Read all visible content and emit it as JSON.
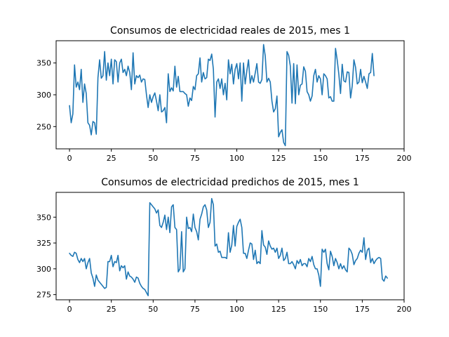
{
  "chart_data": [
    {
      "type": "line",
      "title": "Consumos de electricidad reales de 2015, mes 1",
      "xlabel": "",
      "ylabel": "",
      "xlim": [
        -8,
        200
      ],
      "ylim": [
        215,
        385
      ],
      "x_ticks": [
        0,
        25,
        50,
        75,
        100,
        125,
        150,
        175,
        200
      ],
      "y_ticks": [
        250,
        300,
        350
      ],
      "grid": false,
      "line_color": "#1f77b4",
      "series": [
        {
          "values": [
            283,
            256,
            270,
            347,
            312,
            320,
            308,
            340,
            288,
            317,
            302,
            256,
            252,
            237,
            258,
            256,
            238,
            327,
            355,
            326,
            330,
            368,
            323,
            350,
            330,
            356,
            317,
            355,
            352,
            320,
            350,
            356,
            335,
            340,
            330,
            345,
            335,
            308,
            366,
            317,
            330,
            327,
            331,
            320,
            325,
            324,
            300,
            280,
            300,
            288,
            297,
            303,
            290,
            275,
            300,
            273,
            275,
            280,
            256,
            333,
            305,
            311,
            306,
            345,
            312,
            329,
            305,
            305,
            305,
            302,
            300,
            282,
            295,
            291,
            313,
            308,
            330,
            333,
            358,
            320,
            335,
            325,
            327,
            356,
            354,
            364,
            340,
            265,
            320,
            325,
            310,
            325,
            300,
            318,
            292,
            355,
            333,
            348,
            317,
            340,
            349,
            325,
            350,
            290,
            350,
            317,
            338,
            355,
            318,
            330,
            320,
            334,
            349,
            320,
            318,
            324,
            379,
            361,
            320,
            326,
            320,
            290,
            273,
            278,
            298,
            234,
            241,
            245,
            225,
            220,
            368,
            362,
            345,
            287,
            349,
            286,
            347,
            300,
            315,
            317,
            344,
            337,
            305,
            300,
            290,
            298,
            330,
            340,
            320,
            330,
            325,
            300,
            333,
            330,
            325,
            295,
            297,
            290,
            290,
            373,
            355,
            332,
            302,
            348,
            322,
            320,
            336,
            335,
            295,
            314,
            355,
            343,
            317,
            320,
            340,
            319,
            329,
            320,
            310,
            333,
            335,
            365,
            330
          ]
        }
      ]
    },
    {
      "type": "line",
      "title": "Consumos de electricidad predichos de 2015, mes 1",
      "xlabel": "",
      "ylabel": "",
      "xlim": [
        -8,
        200
      ],
      "ylim": [
        270,
        374
      ],
      "x_ticks": [
        0,
        25,
        50,
        75,
        100,
        125,
        150,
        175,
        200
      ],
      "y_ticks": [
        275,
        300,
        325,
        350
      ],
      "grid": false,
      "line_color": "#1f77b4",
      "series": [
        {
          "values": [
            315,
            313,
            312,
            316,
            315,
            309,
            306,
            310,
            307,
            310,
            300,
            306,
            310,
            296,
            291,
            283,
            294,
            289,
            287,
            285,
            283,
            281,
            282,
            307,
            307,
            313,
            302,
            307,
            306,
            313,
            298,
            303,
            301,
            303,
            290,
            297,
            293,
            292,
            290,
            287,
            292,
            291,
            286,
            283,
            281,
            280,
            277,
            274,
            364,
            362,
            360,
            358,
            354,
            357,
            342,
            340,
            345,
            352,
            338,
            350,
            335,
            360,
            362,
            340,
            338,
            297,
            300,
            336,
            297,
            300,
            350,
            339,
            340,
            336,
            353,
            340,
            336,
            328,
            348,
            353,
            360,
            362,
            357,
            340,
            345,
            368,
            362,
            322,
            324,
            316,
            317,
            311,
            311,
            311,
            310,
            335,
            316,
            323,
            342,
            322,
            341,
            345,
            348,
            340,
            315,
            315,
            310,
            318,
            325,
            324,
            309,
            318,
            305,
            307,
            305,
            337,
            323,
            321,
            314,
            327,
            322,
            319,
            320,
            316,
            320,
            310,
            313,
            320,
            308,
            310,
            316,
            305,
            305,
            307,
            304,
            300,
            308,
            305,
            309,
            303,
            305,
            305,
            302,
            310,
            307,
            312,
            304,
            300,
            300,
            294,
            283,
            319,
            316,
            319,
            305,
            299,
            317,
            312,
            303,
            310,
            306,
            300,
            305,
            300,
            303,
            299,
            297,
            320,
            318,
            314,
            304,
            308,
            310,
            315,
            318,
            316,
            330,
            309,
            318,
            320,
            306,
            310,
            305,
            308,
            310,
            311,
            310,
            290,
            288,
            293,
            291
          ]
        }
      ]
    }
  ]
}
